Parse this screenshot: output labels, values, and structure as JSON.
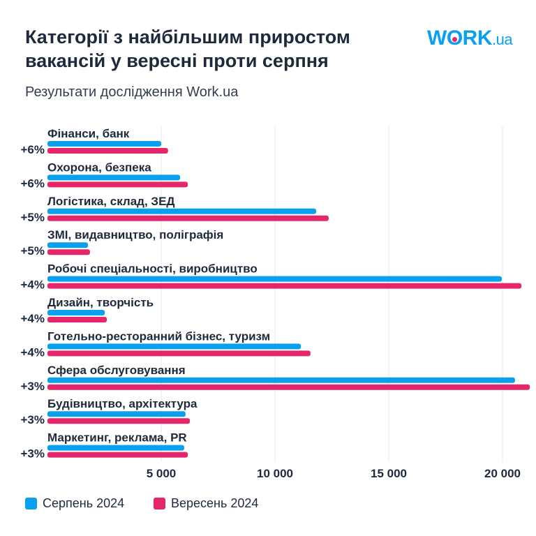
{
  "title": "Категорії з найбільшим приростом вакансій у вересні проти серпня",
  "subtitle": "Результати дослідження Work.ua",
  "logo": "WORK.ua",
  "chart_data": {
    "type": "bar",
    "orientation": "horizontal",
    "categories": [
      "Фінанси, банк",
      "Охорона, безпека",
      "Логістика, склад, ЗЕД",
      "ЗМІ, видавництво, поліграфія",
      "Робочі спеціальності, виробництво",
      "Дизайн, творчість",
      "Готельно-ресторанний бізнес, туризм",
      "Сфера обслуговування",
      "Будівництво, архітектура",
      "Маркетинг, реклама, PR"
    ],
    "growth_labels": [
      "+6%",
      "+6%",
      "+5%",
      "+5%",
      "+4%",
      "+4%",
      "+4%",
      "+3%",
      "+3%",
      "+3%"
    ],
    "series": [
      {
        "name": "Серпень 2024",
        "color": "#0aa0ee",
        "values": [
          5000,
          5830,
          11810,
          1780,
          19970,
          2520,
          11140,
          20550,
          6070,
          6010
        ]
      },
      {
        "name": "Вересень 2024",
        "color": "#e5266a",
        "values": [
          5300,
          6170,
          12360,
          1870,
          20830,
          2610,
          11560,
          21200,
          6260,
          6170
        ]
      }
    ],
    "xticks": [
      5000,
      10000,
      15000,
      20000
    ],
    "xtick_labels": [
      "5 000",
      "10 000",
      "15 000",
      "20 000"
    ],
    "xlim": [
      0,
      21500
    ],
    "grid": true,
    "legend_placement": "bottom-left"
  }
}
